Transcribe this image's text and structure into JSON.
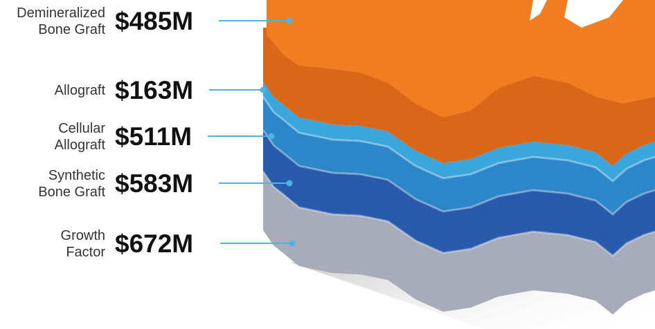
{
  "items": [
    {
      "label": [
        "Demineralized",
        "Bone Graft"
      ],
      "value": "$485M"
    },
    {
      "label": [
        "Allograft"
      ],
      "value": "$163M"
    },
    {
      "label": [
        "Cellular",
        "Allograft"
      ],
      "value": "$511M"
    },
    {
      "label": [
        "Synthetic",
        "Bone Graft"
      ],
      "value": "$583M"
    },
    {
      "label": [
        "Growth",
        "Factor"
      ],
      "value": "$672M"
    }
  ]
}
